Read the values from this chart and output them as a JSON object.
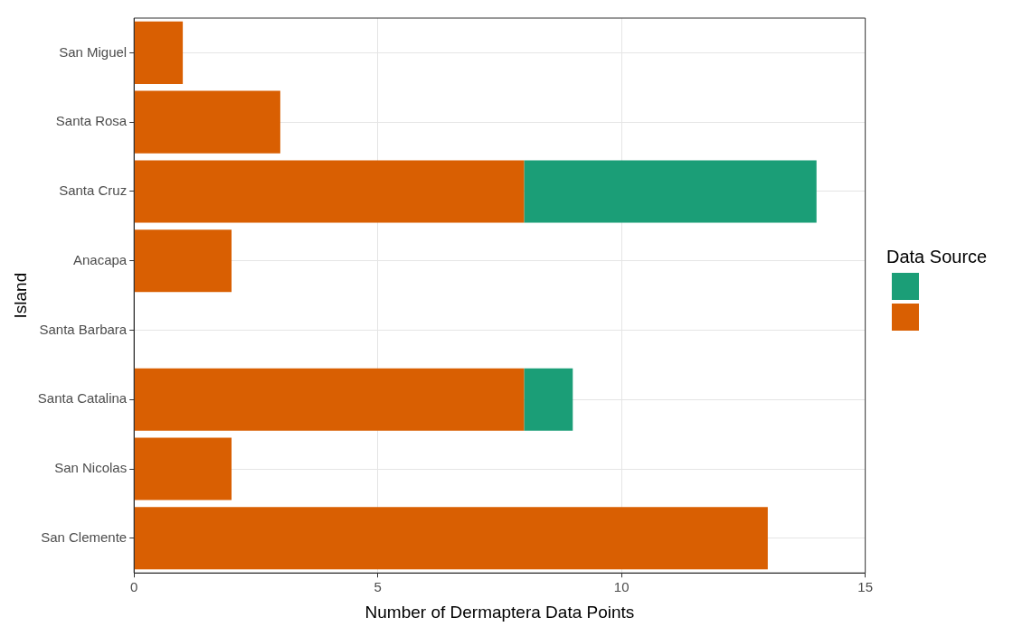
{
  "chart_data": {
    "type": "bar",
    "orientation": "horizontal",
    "stacked": true,
    "xlabel": "Number of Dermaptera Data Points",
    "ylabel": "Island",
    "legend_title": "Data Source",
    "grid": true,
    "categories": [
      "San Miguel",
      "Santa Rosa",
      "Santa Cruz",
      "Anacapa",
      "Santa Barbara",
      "Santa Catalina",
      "San Nicolas",
      "San Clemente"
    ],
    "series": [
      {
        "color": "#d95f02",
        "values": [
          1,
          3,
          8,
          2,
          0,
          8,
          2,
          13
        ]
      },
      {
        "color": "#1b9e77",
        "values": [
          0,
          0,
          6,
          0,
          0,
          1,
          0,
          0
        ]
      }
    ],
    "xlim": [
      0,
      15
    ],
    "xticks": [
      0,
      5,
      10,
      15
    ]
  }
}
